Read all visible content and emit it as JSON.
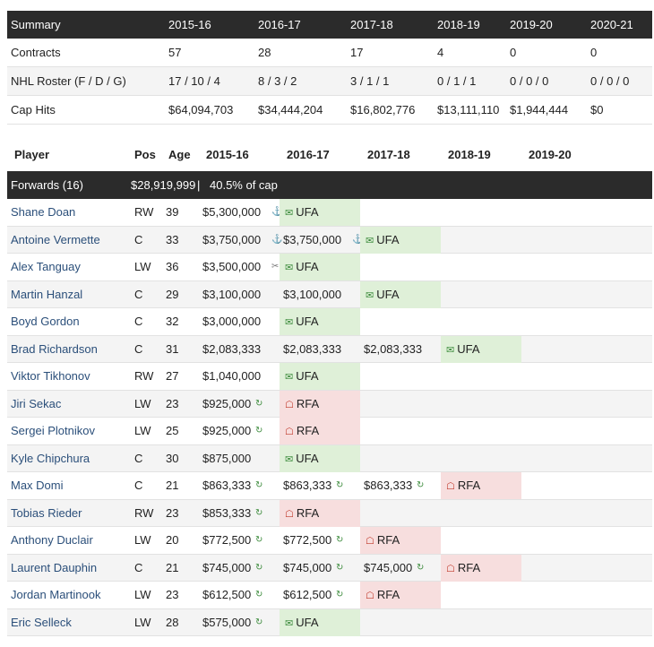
{
  "summary": {
    "header": [
      "Summary",
      "2015-16",
      "2016-17",
      "2017-18",
      "2018-19",
      "2019-20",
      "2020-21"
    ],
    "rows": [
      {
        "label": "Contracts",
        "values": [
          "57",
          "28",
          "17",
          "4",
          "0",
          "0"
        ]
      },
      {
        "label": "NHL Roster (F / D / G)",
        "values": [
          "17 / 10 / 4",
          "8 / 3 / 2",
          "3 / 1 / 1",
          "0 / 1 / 1",
          "0 / 0 / 0",
          "0 / 0 / 0"
        ]
      },
      {
        "label": "Cap Hits",
        "values": [
          "$64,094,703",
          "$34,444,204",
          "$16,802,776",
          "$13,111,110",
          "$1,944,444",
          "$0"
        ]
      }
    ]
  },
  "players_header": {
    "player": "Player",
    "pos": "Pos",
    "age": "Age",
    "seasons": [
      "2015-16",
      "2016-17",
      "2017-18",
      "2018-19",
      "2019-20"
    ]
  },
  "group": {
    "label": "Forwards (16)",
    "cap": "$28,919,999",
    "sep": "|",
    "pct": "40.5% of cap"
  },
  "icons": {
    "ufa": "unlock-icon",
    "rfa": "lock-icon",
    "anchor": "anchor-icon",
    "sync": "refresh-icon",
    "clip": "paperclip-icon"
  },
  "players": [
    {
      "name": "Shane Doan",
      "pos": "RW",
      "age": "39",
      "cells": [
        {
          "v": "$5,300,000",
          "i": "anchor"
        },
        {
          "tag": "UFA"
        }
      ]
    },
    {
      "name": "Antoine Vermette",
      "pos": "C",
      "age": "33",
      "cells": [
        {
          "v": "$3,750,000",
          "i": "anchor"
        },
        {
          "v": "$3,750,000",
          "i": "anchor"
        },
        {
          "tag": "UFA"
        }
      ]
    },
    {
      "name": "Alex Tanguay",
      "pos": "LW",
      "age": "36",
      "cells": [
        {
          "v": "$3,500,000",
          "i": "clip"
        },
        {
          "tag": "UFA"
        }
      ]
    },
    {
      "name": "Martin Hanzal",
      "pos": "C",
      "age": "29",
      "cells": [
        {
          "v": "$3,100,000"
        },
        {
          "v": "$3,100,000"
        },
        {
          "tag": "UFA"
        }
      ]
    },
    {
      "name": "Boyd Gordon",
      "pos": "C",
      "age": "32",
      "cells": [
        {
          "v": "$3,000,000"
        },
        {
          "tag": "UFA"
        }
      ]
    },
    {
      "name": "Brad Richardson",
      "pos": "C",
      "age": "31",
      "cells": [
        {
          "v": "$2,083,333"
        },
        {
          "v": "$2,083,333"
        },
        {
          "v": "$2,083,333"
        },
        {
          "tag": "UFA"
        }
      ]
    },
    {
      "name": "Viktor Tikhonov",
      "pos": "RW",
      "age": "27",
      "cells": [
        {
          "v": "$1,040,000"
        },
        {
          "tag": "UFA"
        }
      ]
    },
    {
      "name": "Jiri Sekac",
      "pos": "LW",
      "age": "23",
      "cells": [
        {
          "v": "$925,000",
          "i": "sync"
        },
        {
          "tag": "RFA"
        }
      ]
    },
    {
      "name": "Sergei Plotnikov",
      "pos": "LW",
      "age": "25",
      "cells": [
        {
          "v": "$925,000",
          "i": "sync"
        },
        {
          "tag": "RFA"
        }
      ]
    },
    {
      "name": "Kyle Chipchura",
      "pos": "C",
      "age": "30",
      "cells": [
        {
          "v": "$875,000"
        },
        {
          "tag": "UFA"
        }
      ]
    },
    {
      "name": "Max Domi",
      "pos": "C",
      "age": "21",
      "cells": [
        {
          "v": "$863,333",
          "i": "sync"
        },
        {
          "v": "$863,333",
          "i": "sync"
        },
        {
          "v": "$863,333",
          "i": "sync"
        },
        {
          "tag": "RFA"
        }
      ]
    },
    {
      "name": "Tobias Rieder",
      "pos": "RW",
      "age": "23",
      "cells": [
        {
          "v": "$853,333",
          "i": "sync"
        },
        {
          "tag": "RFA"
        }
      ]
    },
    {
      "name": "Anthony Duclair",
      "pos": "LW",
      "age": "20",
      "cells": [
        {
          "v": "$772,500",
          "i": "sync"
        },
        {
          "v": "$772,500",
          "i": "sync"
        },
        {
          "tag": "RFA"
        }
      ]
    },
    {
      "name": "Laurent Dauphin",
      "pos": "C",
      "age": "21",
      "cells": [
        {
          "v": "$745,000",
          "i": "sync"
        },
        {
          "v": "$745,000",
          "i": "sync"
        },
        {
          "v": "$745,000",
          "i": "sync"
        },
        {
          "tag": "RFA"
        }
      ]
    },
    {
      "name": "Jordan Martinook",
      "pos": "LW",
      "age": "23",
      "cells": [
        {
          "v": "$612,500",
          "i": "sync"
        },
        {
          "v": "$612,500",
          "i": "sync"
        },
        {
          "tag": "RFA"
        }
      ]
    },
    {
      "name": "Eric Selleck",
      "pos": "LW",
      "age": "28",
      "cells": [
        {
          "v": "$575,000",
          "i": "sync"
        },
        {
          "tag": "UFA"
        }
      ]
    }
  ]
}
